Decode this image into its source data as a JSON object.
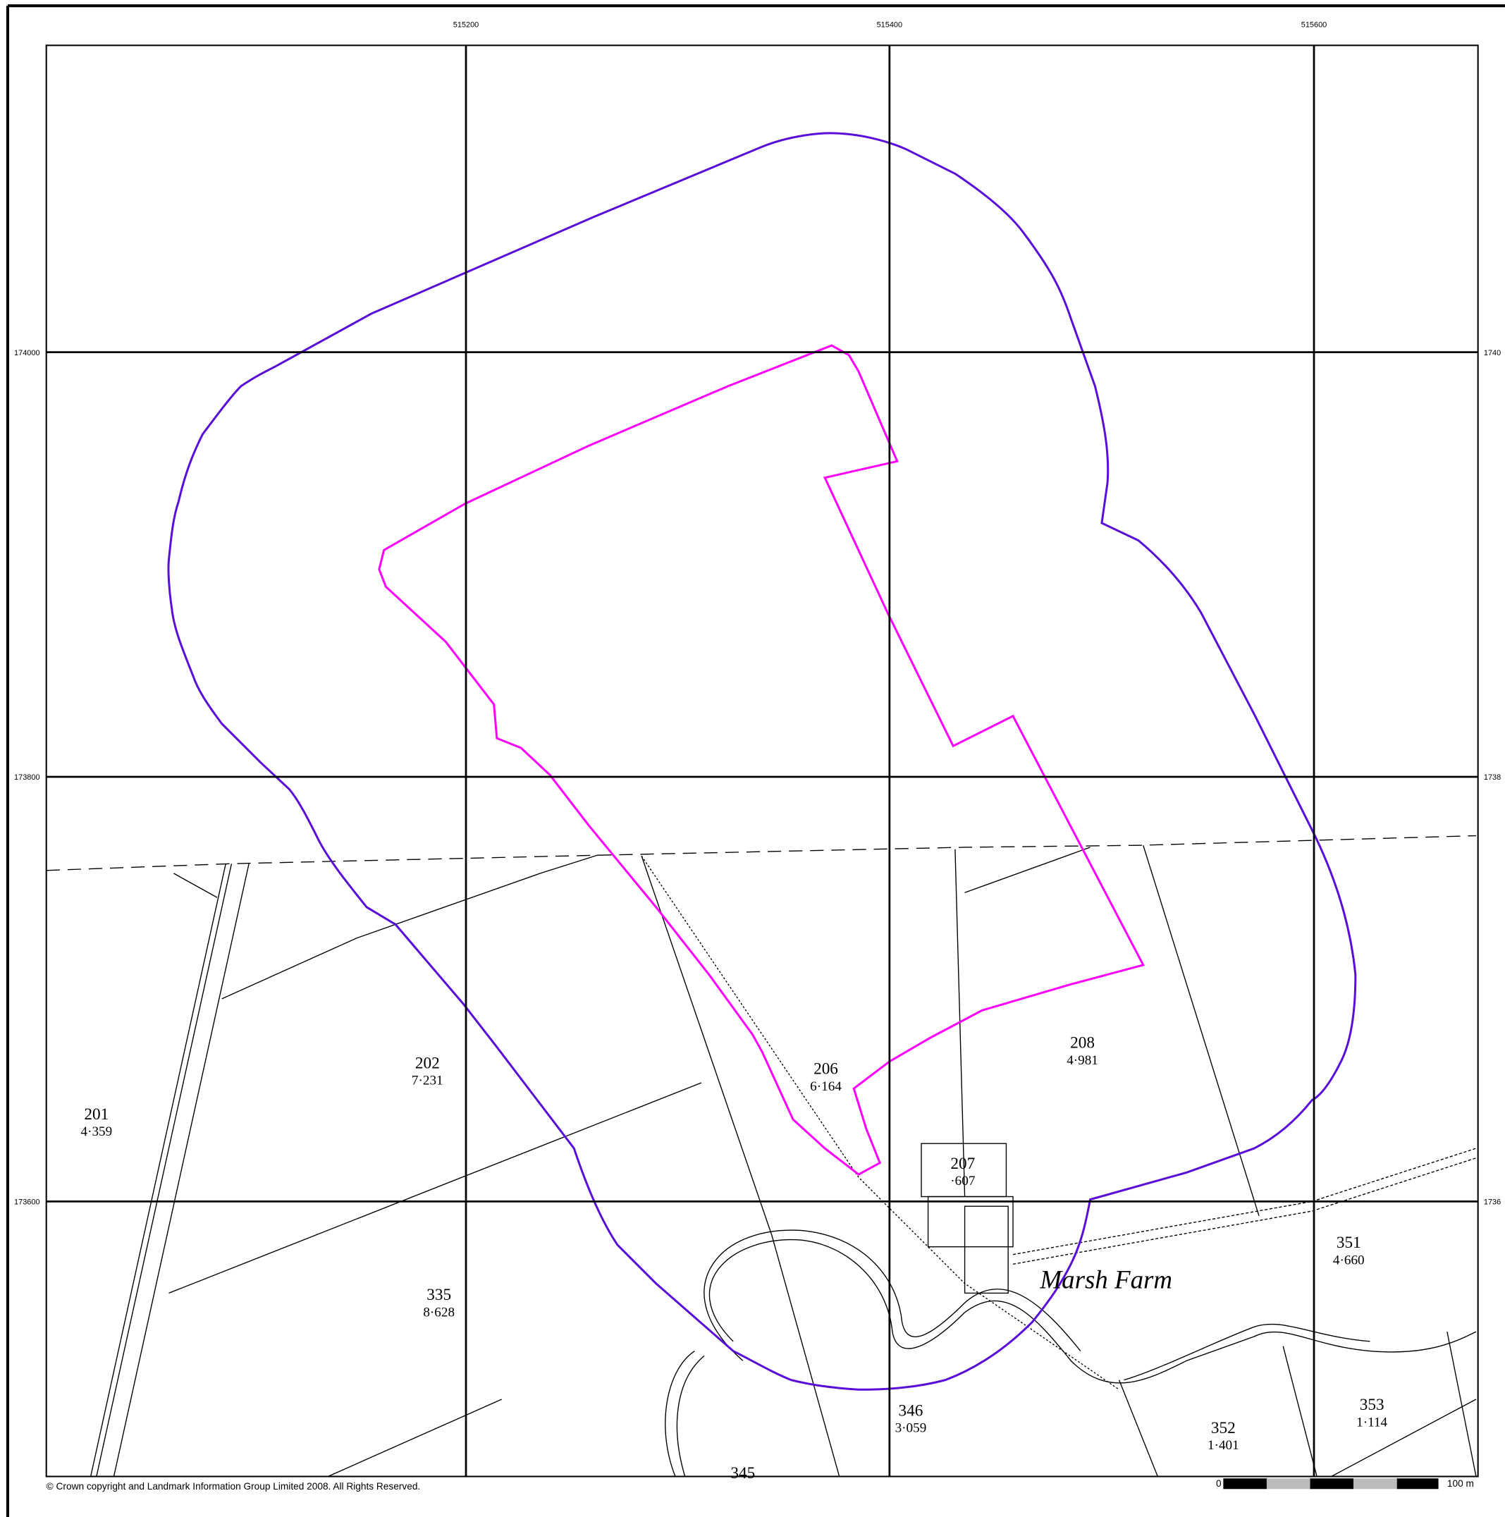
{
  "grid": {
    "eastings": [
      "515200",
      "515400",
      "515600"
    ],
    "northings": [
      "174000",
      "173800",
      "173600"
    ],
    "northings_right": [
      "1740",
      "1738",
      "1736"
    ]
  },
  "parcels": [
    {
      "number": "201",
      "area": "4·359"
    },
    {
      "number": "202",
      "area": "7·231"
    },
    {
      "number": "206",
      "area": "6·164"
    },
    {
      "number": "207",
      "area": "·607"
    },
    {
      "number": "208",
      "area": "4·981"
    },
    {
      "number": "335",
      "area": "8·628"
    },
    {
      "number": "346",
      "area": "3·059"
    },
    {
      "number": "351",
      "area": "4·660"
    },
    {
      "number": "352",
      "area": "1·401"
    },
    {
      "number": "353",
      "area": "1·114"
    },
    {
      "number": "345"
    }
  ],
  "place_label": "Marsh Farm",
  "copyright": "© Crown copyright and Landmark Information Group Limited 2008.  All Rights Reserved.",
  "scale_bar": {
    "start": "0",
    "end": "100 m"
  }
}
